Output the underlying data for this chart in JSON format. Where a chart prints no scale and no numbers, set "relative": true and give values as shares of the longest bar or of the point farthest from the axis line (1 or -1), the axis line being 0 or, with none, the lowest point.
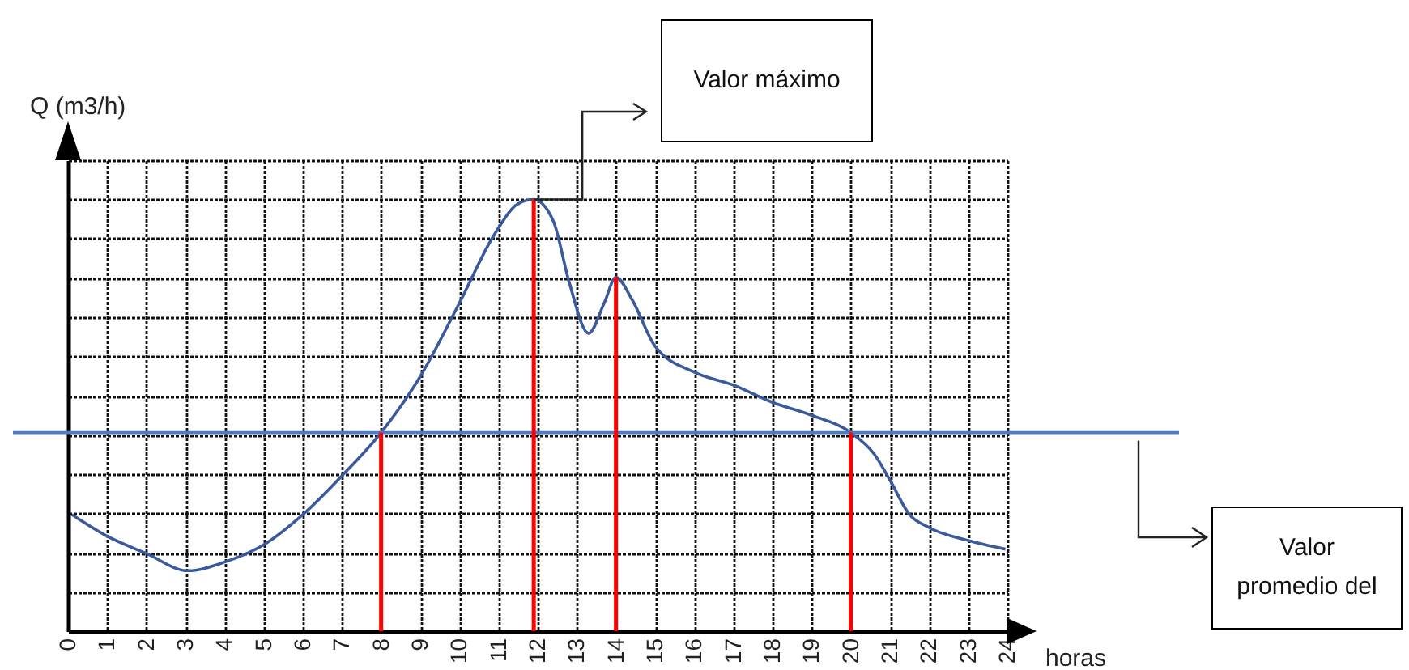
{
  "chart_data": {
    "type": "line",
    "relative": true,
    "xlabel": "horas",
    "ylabel": "Q (m3/h)",
    "xlim": [
      0,
      24
    ],
    "xticks": [
      0,
      1,
      2,
      3,
      4,
      5,
      6,
      7,
      8,
      9,
      10,
      11,
      12,
      13,
      14,
      15,
      16,
      17,
      18,
      19,
      20,
      21,
      22,
      23,
      24
    ],
    "x": [
      0.1,
      1,
      2,
      3.06,
      4,
      5,
      6,
      7,
      8,
      9,
      10,
      10.9,
      11.5,
      11.9,
      12.4,
      12.8,
      13.3,
      13.7,
      14,
      14.4,
      15,
      16,
      17,
      18,
      19,
      20,
      20.6,
      21,
      21.5,
      22,
      23,
      23.95
    ],
    "series": [
      {
        "color": "#3a5a9b",
        "values": [
          0.27,
          0.22,
          0.18,
          0.14,
          0.16,
          0.2,
          0.27,
          0.36,
          0.46,
          0.59,
          0.76,
          0.92,
          0.99,
          1,
          0.95,
          0.81,
          0.69,
          0.76,
          0.82,
          0.77,
          0.66,
          0.6,
          0.57,
          0.53,
          0.5,
          0.46,
          0.41,
          0.35,
          0.27,
          0.24,
          0.21,
          0.19
        ]
      }
    ],
    "ref_lines": [
      {
        "axis": "y",
        "value": 0.46,
        "color": "#4a7cc9"
      },
      {
        "axis": "x",
        "value": 8,
        "color": "#ff0000"
      },
      {
        "axis": "x",
        "value": 11.9,
        "color": "#ff0000"
      },
      {
        "axis": "x",
        "value": 14,
        "color": "#ff0000"
      },
      {
        "axis": "x",
        "value": 20,
        "color": "#ff0000"
      }
    ],
    "annotations": [
      "Valor máximo",
      "Valor promedio del"
    ],
    "grid": true,
    "marker": "none",
    "line_style": "solid"
  }
}
